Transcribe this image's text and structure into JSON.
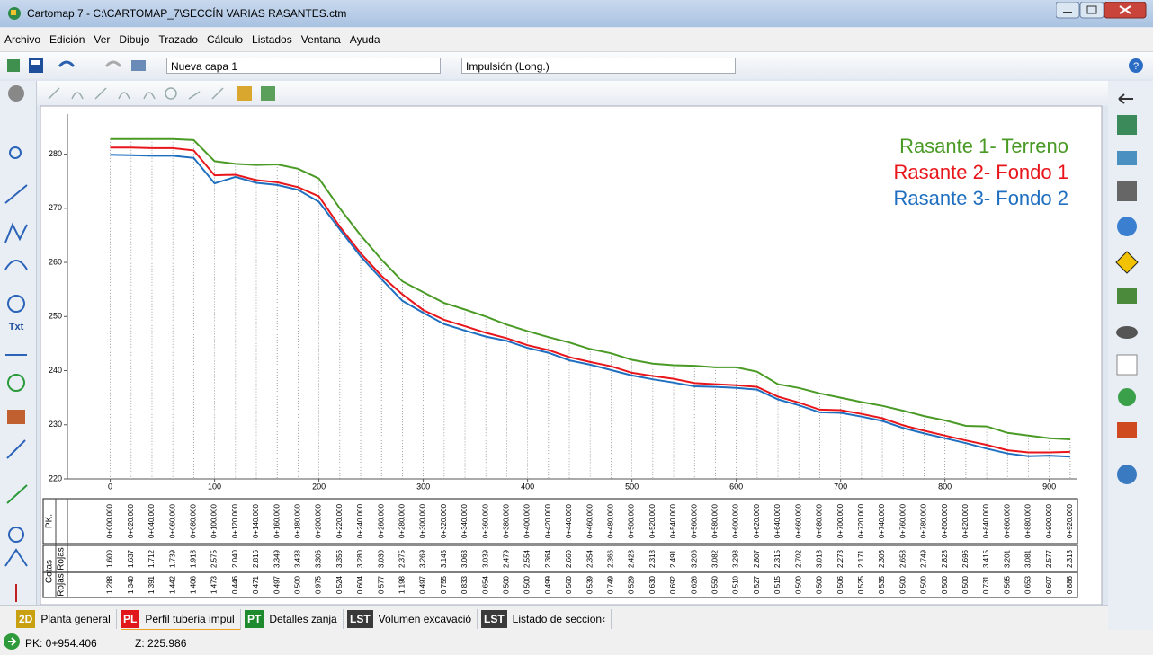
{
  "window": {
    "title": "Cartomap 7 - C:\\CARTOMAP_7\\SECCÍN VARIAS RASANTES.ctm"
  },
  "menu": [
    "Archivo",
    "Edición",
    "Ver",
    "Dibujo",
    "Trazado",
    "Cálculo",
    "Listados",
    "Ventana",
    "Ayuda"
  ],
  "toolbar": {
    "layer": "Nueva capa 1",
    "profile": "Impulsión (Long.)"
  },
  "side_tools": {
    "text_tool": "Txt"
  },
  "chart_data": {
    "type": "line",
    "x": [
      0,
      20,
      40,
      60,
      80,
      100,
      120,
      140,
      160,
      180,
      200,
      220,
      240,
      260,
      280,
      300,
      320,
      340,
      360,
      380,
      400,
      420,
      440,
      460,
      480,
      500,
      520,
      540,
      560,
      580,
      600,
      620,
      640,
      660,
      680,
      700,
      720,
      740,
      760,
      780,
      800,
      820,
      840,
      860,
      880,
      900,
      920
    ],
    "series": [
      {
        "name": "Rasante 1- Terreno",
        "color": "#4a9a26",
        "values": [
          282.8,
          282.8,
          282.8,
          282.8,
          282.6,
          278.7,
          278.2,
          278.0,
          278.1,
          277.3,
          275.5,
          270.0,
          265.0,
          260.5,
          256.5,
          254.5,
          252.5,
          251.3,
          250.0,
          248.5,
          247.3,
          246.2,
          245.2,
          244.0,
          243.2,
          242.0,
          241.3,
          241.0,
          240.9,
          240.6,
          240.6,
          239.8,
          237.5,
          236.8,
          235.8,
          235.0,
          234.2,
          233.5,
          232.6,
          231.6,
          230.8,
          229.8,
          229.7,
          228.5,
          228.0,
          227.5,
          227.3
        ]
      },
      {
        "name": "Rasante 2- Fondo 1",
        "color": "#e8161b",
        "values": [
          281.2,
          281.2,
          281.1,
          281.1,
          280.7,
          276.1,
          276.2,
          275.2,
          274.8,
          273.9,
          272.2,
          266.6,
          261.7,
          257.5,
          254.1,
          251.2,
          249.4,
          248.2,
          247.0,
          246.0,
          244.7,
          243.8,
          242.5,
          241.6,
          240.8,
          239.6,
          239.0,
          238.5,
          237.7,
          237.5,
          237.3,
          237.0,
          235.2,
          234.1,
          232.8,
          232.7,
          232.0,
          231.2,
          229.9,
          228.9,
          228.0,
          227.1,
          226.3,
          225.3,
          224.9,
          224.9,
          225.0
        ]
      },
      {
        "name": "Rasante 3- Fondo 2",
        "color": "#1f6fc0",
        "values": [
          279.9,
          279.8,
          279.7,
          279.7,
          279.3,
          274.6,
          275.8,
          274.7,
          274.3,
          273.4,
          271.2,
          266.1,
          261.1,
          256.9,
          252.9,
          250.7,
          248.6,
          247.4,
          246.3,
          245.5,
          244.2,
          243.3,
          241.9,
          241.1,
          240.1,
          239.1,
          238.4,
          237.8,
          237.1,
          237.0,
          236.8,
          236.5,
          234.7,
          233.6,
          232.3,
          232.2,
          231.5,
          230.7,
          229.4,
          228.4,
          227.5,
          226.6,
          225.6,
          224.7,
          224.2,
          224.3,
          224.1
        ]
      }
    ],
    "xlim": [
      -41,
      927
    ],
    "ylim": [
      220,
      287.4
    ],
    "xticks": [
      0,
      100,
      200,
      300,
      400,
      500,
      600,
      700,
      800,
      900
    ],
    "yticks": [
      220,
      230,
      240,
      250,
      260,
      270,
      280
    ],
    "legend": "upper right",
    "table": {
      "row_labels": {
        "pk": "PK.",
        "group": "Cotas",
        "rojas_1": "Rojas",
        "rojas_2": "Rojas"
      },
      "pk": [
        "0+000.000",
        "0+020.000",
        "0+040.000",
        "0+060.000",
        "0+080.000",
        "0+100.000",
        "0+120.000",
        "0+140.000",
        "0+160.000",
        "0+180.000",
        "0+200.000",
        "0+220.000",
        "0+240.000",
        "0+260.000",
        "0+280.000",
        "0+300.000",
        "0+320.000",
        "0+340.000",
        "0+360.000",
        "0+380.000",
        "0+400.000",
        "0+420.000",
        "0+440.000",
        "0+460.000",
        "0+480.000",
        "0+500.000",
        "0+520.000",
        "0+540.000",
        "0+560.000",
        "0+580.000",
        "0+600.000",
        "0+620.000",
        "0+640.000",
        "0+660.000",
        "0+680.000",
        "0+700.000",
        "0+720.000",
        "0+740.000",
        "0+760.000",
        "0+780.000",
        "0+800.000",
        "0+820.000",
        "0+840.000",
        "0+860.000",
        "0+880.000",
        "0+900.000",
        "0+920.000"
      ],
      "rojas_1": [
        "1.600",
        "1.637",
        "1.712",
        "1.739",
        "1.918",
        "2.575",
        "2.040",
        "2.816",
        "3.349",
        "3.438",
        "3.305",
        "3.356",
        "3.280",
        "3.030",
        "2.375",
        "3.269",
        "3.145",
        "3.063",
        "3.039",
        "2.479",
        "2.554",
        "2.364",
        "2.660",
        "2.354",
        "2.366",
        "2.428",
        "2.318",
        "2.491",
        "3.206",
        "3.082",
        "3.293",
        "2.807",
        "2.315",
        "2.702",
        "3.018",
        "2.273",
        "2.171",
        "2.306",
        "2.658",
        "2.749",
        "2.828",
        "2.696",
        "3.415",
        "3.201",
        "3.081",
        "2.577",
        "2.313"
      ],
      "rojas_2": [
        "1.288",
        "1.340",
        "1.391",
        "1.442",
        "1.406",
        "1.473",
        "0.446",
        "0.471",
        "0.497",
        "0.500",
        "0.975",
        "0.524",
        "0.604",
        "0.577",
        "1.198",
        "0.497",
        "0.755",
        "0.833",
        "0.654",
        "0.500",
        "0.500",
        "0.499",
        "0.560",
        "0.539",
        "0.749",
        "0.529",
        "0.630",
        "0.692",
        "0.626",
        "0.550",
        "0.510",
        "0.527",
        "0.515",
        "0.500",
        "0.500",
        "0.506",
        "0.525",
        "0.535",
        "0.500",
        "0.500",
        "0.500",
        "0.500",
        "0.731",
        "0.565",
        "0.653",
        "0.607",
        "0.886"
      ]
    }
  },
  "tabs": [
    {
      "badge": "2D",
      "label": "Planta general",
      "color": "#c9a010"
    },
    {
      "badge": "PL",
      "label": "Perfil tuberia impul",
      "color": "#e0161b"
    },
    {
      "badge": "PT",
      "label": "Detalles zanja",
      "color": "#1e8a2e"
    },
    {
      "badge": "LST",
      "label": "Volumen excavació",
      "color": "#3a3a3a"
    },
    {
      "badge": "LST",
      "label": "Listado de seccion‹",
      "color": "#3a3a3a"
    }
  ],
  "status": {
    "pk": "PK: 0+954.406",
    "z": "Z: 225.986"
  }
}
